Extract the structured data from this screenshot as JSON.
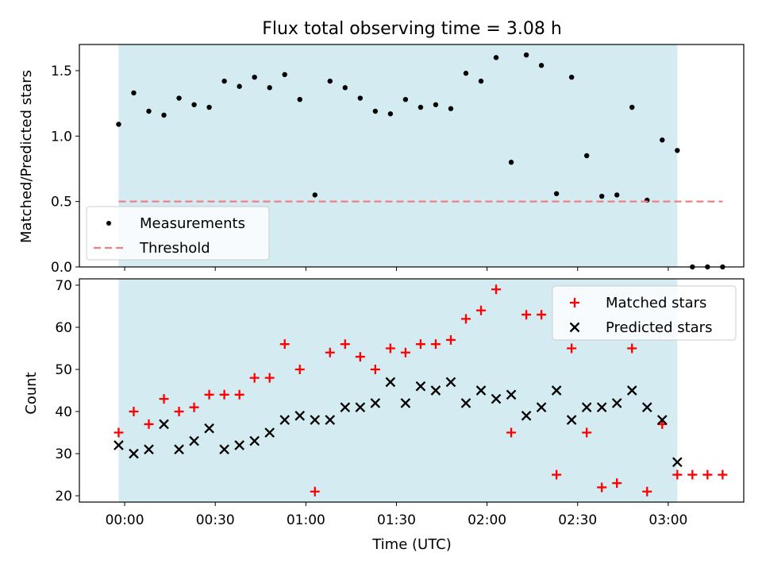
{
  "chart_data": [
    {
      "type": "scatter",
      "title": "Flux total observing time = 3.08 h",
      "xlabel": "",
      "ylabel": "Matched/Predicted stars",
      "ylim": [
        0,
        1.7
      ],
      "yticks": [
        "0.0",
        "0.5",
        "1.0",
        "1.5"
      ],
      "xlim": [
        "23:45",
        "03:25"
      ],
      "shaded_span": [
        "23:58",
        "03:03"
      ],
      "shade_color": "#add8e6",
      "legend_position": "lower-left",
      "series": [
        {
          "name": "Measurements",
          "marker": "dot",
          "color": "#000000",
          "x": [
            "23:58",
            "00:03",
            "00:08",
            "00:13",
            "00:18",
            "00:23",
            "00:28",
            "00:33",
            "00:38",
            "00:43",
            "00:48",
            "00:53",
            "00:58",
            "01:03",
            "01:08",
            "01:13",
            "01:18",
            "01:23",
            "01:28",
            "01:33",
            "01:38",
            "01:43",
            "01:48",
            "01:53",
            "01:58",
            "02:03",
            "02:08",
            "02:13",
            "02:18",
            "02:23",
            "02:28",
            "02:33",
            "02:38",
            "02:43",
            "02:48",
            "02:53",
            "02:58",
            "03:03",
            "03:08",
            "03:13",
            "03:18"
          ],
          "y": [
            1.09,
            1.33,
            1.19,
            1.16,
            1.29,
            1.24,
            1.22,
            1.42,
            1.38,
            1.45,
            1.37,
            1.47,
            1.28,
            0.55,
            1.42,
            1.37,
            1.29,
            1.19,
            1.17,
            1.28,
            1.22,
            1.24,
            1.21,
            1.48,
            1.42,
            1.6,
            0.8,
            1.62,
            1.54,
            0.56,
            1.45,
            0.85,
            0.54,
            0.55,
            1.22,
            0.51,
            0.97,
            0.89,
            0.0,
            0.0,
            0.0
          ]
        },
        {
          "name": "Threshold",
          "marker": "dashed-line",
          "color": "#f08080",
          "x": [
            "23:58",
            "03:18"
          ],
          "y": [
            0.5,
            0.5
          ]
        }
      ]
    },
    {
      "type": "scatter",
      "title": "",
      "xlabel": "Time (UTC)",
      "ylabel": "Count",
      "ylim": [
        18.5,
        71.5
      ],
      "yticks": [
        "20",
        "30",
        "40",
        "50",
        "60",
        "70"
      ],
      "xlim": [
        "23:45",
        "03:25"
      ],
      "xticks": [
        "00:00",
        "00:30",
        "01:00",
        "01:30",
        "02:00",
        "02:30",
        "03:00"
      ],
      "shaded_span": [
        "23:58",
        "03:03"
      ],
      "shade_color": "#add8e6",
      "legend_position": "top-right",
      "series": [
        {
          "name": "Matched stars",
          "marker": "plus",
          "color": "#ff0000",
          "x": [
            "23:58",
            "00:03",
            "00:08",
            "00:13",
            "00:18",
            "00:23",
            "00:28",
            "00:33",
            "00:38",
            "00:43",
            "00:48",
            "00:53",
            "00:58",
            "01:03",
            "01:08",
            "01:13",
            "01:18",
            "01:23",
            "01:28",
            "01:33",
            "01:38",
            "01:43",
            "01:48",
            "01:53",
            "01:58",
            "02:03",
            "02:08",
            "02:13",
            "02:18",
            "02:23",
            "02:28",
            "02:33",
            "02:38",
            "02:43",
            "02:48",
            "02:53",
            "02:58",
            "03:03",
            "03:08",
            "03:13",
            "03:18"
          ],
          "y": [
            35,
            40,
            37,
            43,
            40,
            41,
            44,
            44,
            44,
            48,
            48,
            56,
            50,
            21,
            54,
            56,
            53,
            50,
            55,
            54,
            56,
            56,
            57,
            62,
            64,
            69,
            35,
            63,
            63,
            25,
            55,
            35,
            22,
            23,
            55,
            21,
            37,
            25,
            25,
            25,
            25
          ]
        },
        {
          "name": "Predicted stars",
          "marker": "x",
          "color": "#000000",
          "x": [
            "23:58",
            "00:03",
            "00:08",
            "00:13",
            "00:18",
            "00:23",
            "00:28",
            "00:33",
            "00:38",
            "00:43",
            "00:48",
            "00:53",
            "00:58",
            "01:03",
            "01:08",
            "01:13",
            "01:18",
            "01:23",
            "01:28",
            "01:33",
            "01:38",
            "01:43",
            "01:48",
            "01:53",
            "01:58",
            "02:03",
            "02:08",
            "02:13",
            "02:18",
            "02:23",
            "02:28",
            "02:33",
            "02:38",
            "02:43",
            "02:48",
            "02:53",
            "02:58",
            "03:03"
          ],
          "y": [
            32,
            30,
            31,
            37,
            31,
            33,
            36,
            31,
            32,
            33,
            35,
            38,
            39,
            38,
            38,
            41,
            41,
            42,
            47,
            42,
            46,
            45,
            47,
            42,
            45,
            43,
            44,
            39,
            41,
            45,
            38,
            41,
            41,
            42,
            45,
            41,
            38,
            28
          ]
        }
      ]
    }
  ]
}
